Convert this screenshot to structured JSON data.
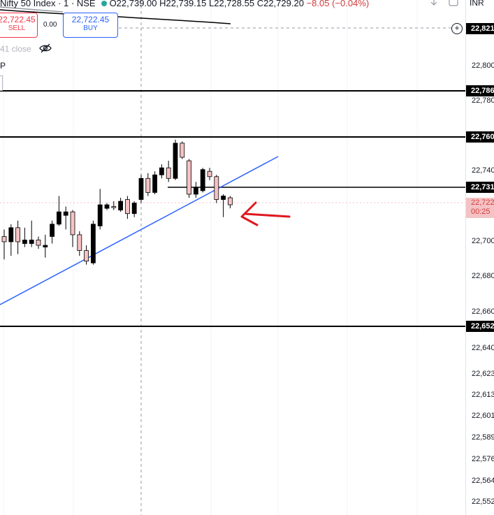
{
  "legend": {
    "title": "Nifty 50 Index · 1 · NSE",
    "open": "O22,739.00",
    "high": "H22,739.15",
    "low": "L22,728.55",
    "close": "C22,729.20",
    "change": "−8.05 (−0.04%)"
  },
  "trade": {
    "sell_value": "22,722.45",
    "sell_label": "SELL",
    "spread": "0.00",
    "buy_value": "22,722.45",
    "buy_label": "BUY"
  },
  "prev_close_label": "41 close",
  "p_label": "P",
  "currency": "INR",
  "axis": {
    "labels": [
      "22,800",
      "22,780",
      "22,740",
      "22,700",
      "22,680",
      "22,660",
      "22,640",
      "22,623",
      "22,613",
      "22,601",
      "22,589",
      "22,576",
      "22,564",
      "22,552"
    ],
    "tags": {
      "top": "22,821",
      "line1": "22,786",
      "line2": "22,760",
      "line3": "22,731",
      "line4": "22,652",
      "price": "22,722",
      "countdown": "00:25"
    }
  },
  "colors": {
    "bear_candle": "#f5c2c4",
    "bull_candle": "#000000",
    "trendline": "#2962ff",
    "arrow": "#e0191f",
    "horizontal_lines": "#000000"
  },
  "candles": [
    {
      "o": 22703,
      "h": 22707,
      "l": 22690,
      "c": 22700,
      "bull": false
    },
    {
      "o": 22700,
      "h": 22710,
      "l": 22692,
      "c": 22708,
      "bull": true
    },
    {
      "o": 22708,
      "h": 22712,
      "l": 22693,
      "c": 22700,
      "bull": false
    },
    {
      "o": 22701,
      "h": 22708,
      "l": 22697,
      "c": 22699,
      "bull": true
    },
    {
      "o": 22699,
      "h": 22712,
      "l": 22697,
      "c": 22701,
      "bull": true
    },
    {
      "o": 22701,
      "h": 22703,
      "l": 22696,
      "c": 22698,
      "bull": false
    },
    {
      "o": 22698,
      "h": 22704,
      "l": 22691,
      "c": 22697,
      "bull": true
    },
    {
      "o": 22703,
      "h": 22712,
      "l": 22699,
      "c": 22710,
      "bull": true
    },
    {
      "o": 22710,
      "h": 22726,
      "l": 22709,
      "c": 22717,
      "bull": true
    },
    {
      "o": 22717,
      "h": 22720,
      "l": 22707,
      "c": 22715,
      "bull": true
    },
    {
      "o": 22717,
      "h": 22718,
      "l": 22697,
      "c": 22704,
      "bull": false
    },
    {
      "o": 22704,
      "h": 22706,
      "l": 22692,
      "c": 22695,
      "bull": false
    },
    {
      "o": 22695,
      "h": 22698,
      "l": 22687,
      "c": 22689,
      "bull": false
    },
    {
      "o": 22688,
      "h": 22712,
      "l": 22687,
      "c": 22710,
      "bull": true
    },
    {
      "o": 22709,
      "h": 22730,
      "l": 22707,
      "c": 22721,
      "bull": true
    },
    {
      "o": 22721,
      "h": 22722,
      "l": 22718,
      "c": 22719,
      "bull": true
    },
    {
      "o": 22720,
      "h": 22723,
      "l": 22718,
      "c": 22720,
      "bull": false
    },
    {
      "o": 22718,
      "h": 22725,
      "l": 22717,
      "c": 22723,
      "bull": true
    },
    {
      "o": 22724,
      "h": 22726,
      "l": 22713,
      "c": 22716,
      "bull": false
    },
    {
      "o": 22716,
      "h": 22723,
      "l": 22714,
      "c": 22722,
      "bull": true
    },
    {
      "o": 22724,
      "h": 22738,
      "l": 22722,
      "c": 22736,
      "bull": true
    },
    {
      "o": 22736,
      "h": 22739,
      "l": 22726,
      "c": 22728,
      "bull": false
    },
    {
      "o": 22728,
      "h": 22740,
      "l": 22727,
      "c": 22738,
      "bull": true
    },
    {
      "o": 22738,
      "h": 22744,
      "l": 22736,
      "c": 22742,
      "bull": true
    },
    {
      "o": 22742,
      "h": 22746,
      "l": 22734,
      "c": 22736,
      "bull": false
    },
    {
      "o": 22736,
      "h": 22758,
      "l": 22735,
      "c": 22756,
      "bull": true
    },
    {
      "o": 22756,
      "h": 22757,
      "l": 22747,
      "c": 22748,
      "bull": false
    },
    {
      "o": 22746,
      "h": 22747,
      "l": 22725,
      "c": 22727,
      "bull": false
    },
    {
      "o": 22727,
      "h": 22734,
      "l": 22725,
      "c": 22731,
      "bull": true
    },
    {
      "o": 22729,
      "h": 22742,
      "l": 22728,
      "c": 22741,
      "bull": true
    },
    {
      "o": 22740,
      "h": 22742,
      "l": 22735,
      "c": 22737,
      "bull": false
    },
    {
      "o": 22737,
      "h": 22738,
      "l": 22722,
      "c": 22724,
      "bull": false
    },
    {
      "o": 22726,
      "h": 22727,
      "l": 22714,
      "c": 22724,
      "bull": true
    },
    {
      "o": 22725,
      "h": 22726,
      "l": 22719,
      "c": 22721,
      "bull": false
    }
  ]
}
